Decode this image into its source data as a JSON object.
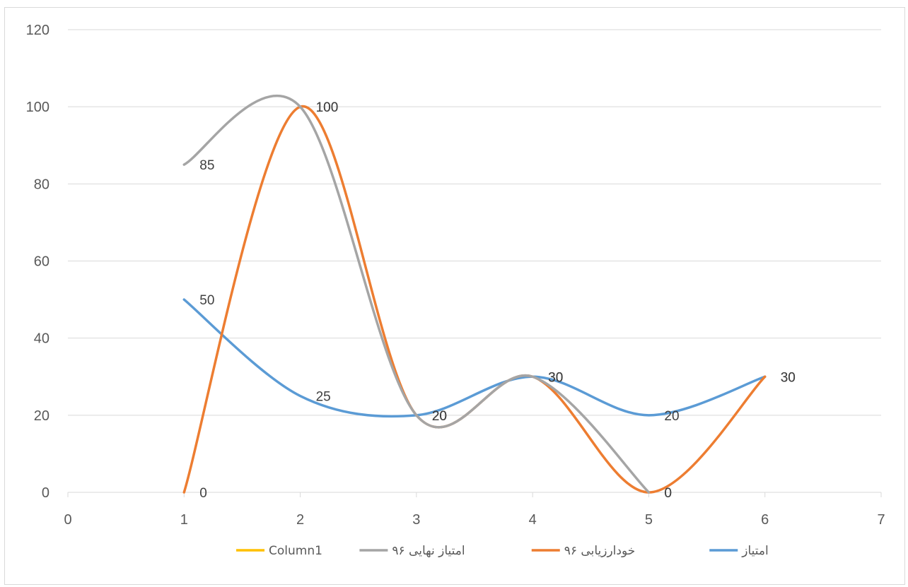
{
  "chart_data": {
    "type": "line",
    "smooth": true,
    "title": "",
    "xlabel": "",
    "ylabel": "",
    "xlim": [
      0,
      7
    ],
    "ylim": [
      0,
      120
    ],
    "x_ticks": [
      "0",
      "1",
      "2",
      "3",
      "4",
      "5",
      "6",
      "7"
    ],
    "y_ticks": [
      "0",
      "20",
      "40",
      "60",
      "80",
      "100",
      "120"
    ],
    "grid": "horizontal",
    "legend_position": "bottom",
    "series": [
      {
        "name": "امتیاز",
        "color": "#5b9bd5",
        "points": [
          {
            "x": 1,
            "y": 50,
            "label": "50"
          },
          {
            "x": 2,
            "y": 25,
            "label": "25"
          },
          {
            "x": 3,
            "y": 20,
            "label": "20"
          },
          {
            "x": 4,
            "y": 30,
            "label": "30"
          },
          {
            "x": 5,
            "y": 20,
            "label": "20"
          },
          {
            "x": 6,
            "y": 30,
            "label": "30"
          }
        ]
      },
      {
        "name": "خودارزیابی ۹۶",
        "color": "#ed7d31",
        "points": [
          {
            "x": 1,
            "y": 0,
            "label": "0"
          },
          {
            "x": 2,
            "y": 100,
            "label": "100"
          },
          {
            "x": 3,
            "y": 20,
            "label": "20"
          },
          {
            "x": 4,
            "y": 30,
            "label": "30"
          },
          {
            "x": 5,
            "y": 0,
            "label": "0"
          },
          {
            "x": 6,
            "y": 30,
            "label": "30"
          }
        ]
      },
      {
        "name": "امتیاز نهایی ۹۶",
        "color": "#a5a5a5",
        "points": [
          {
            "x": 1,
            "y": 85,
            "label": "85"
          },
          {
            "x": 2,
            "y": 100,
            "label": "100"
          },
          {
            "x": 3,
            "y": 20,
            "label": "20"
          },
          {
            "x": 4,
            "y": 30,
            "label": "30"
          },
          {
            "x": 5,
            "y": 0,
            "label": "0"
          }
        ]
      },
      {
        "name": "Column1",
        "color": "#ffc000",
        "points": []
      }
    ]
  }
}
